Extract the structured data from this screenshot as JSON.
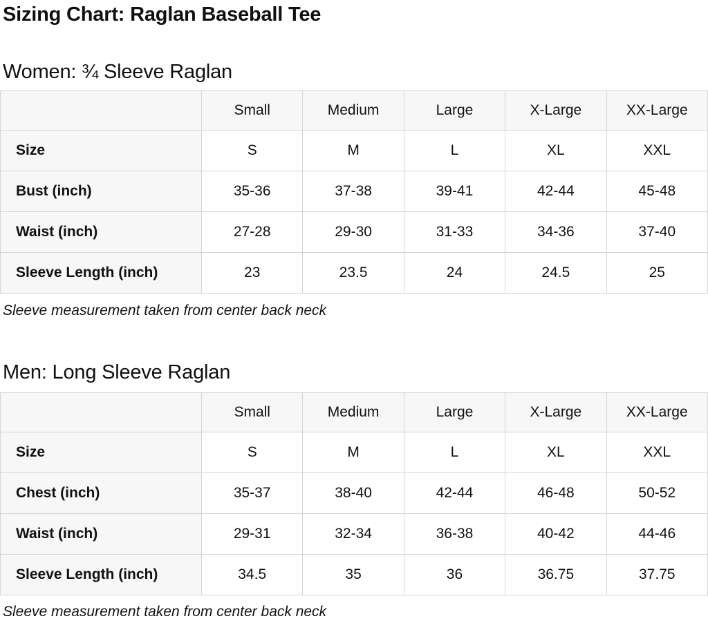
{
  "page_title": "Sizing Chart: Raglan Baseball Tee",
  "sections": [
    {
      "id": "women",
      "heading": "Women: ¾ Sleeve Raglan",
      "columns": [
        "",
        "Small",
        "Medium",
        "Large",
        "X-Large",
        "XX-Large"
      ],
      "rows": [
        {
          "label": "Size",
          "values": [
            "S",
            "M",
            "L",
            "XL",
            "XXL"
          ]
        },
        {
          "label": "Bust (inch)",
          "values": [
            "35-36",
            "37-38",
            "39-41",
            "42-44",
            "45-48"
          ]
        },
        {
          "label": "Waist (inch)",
          "values": [
            "27-28",
            "29-30",
            "31-33",
            "34-36",
            "37-40"
          ]
        },
        {
          "label": "Sleeve Length (inch)",
          "values": [
            "23",
            "23.5",
            "24",
            "24.5",
            "25"
          ]
        }
      ],
      "note": "Sleeve measurement taken from center back neck"
    },
    {
      "id": "men",
      "heading": "Men: Long Sleeve Raglan",
      "columns": [
        "",
        "Small",
        "Medium",
        "Large",
        "X-Large",
        "XX-Large"
      ],
      "rows": [
        {
          "label": "Size",
          "values": [
            "S",
            "M",
            "L",
            "XL",
            "XXL"
          ]
        },
        {
          "label": "Chest (inch)",
          "values": [
            "35-37",
            "38-40",
            "42-44",
            "46-48",
            "50-52"
          ]
        },
        {
          "label": "Waist (inch)",
          "values": [
            "29-31",
            "32-34",
            "36-38",
            "40-42",
            "44-46"
          ]
        },
        {
          "label": "Sleeve Length (inch)",
          "values": [
            "34.5",
            "35",
            "36",
            "36.75",
            "37.75"
          ]
        }
      ],
      "note": "Sleeve measurement taken from center back neck"
    }
  ],
  "colors": {
    "text": "#0f1111",
    "header_cell_bg": "#f7f7f7",
    "table_border": "#d5d5d5",
    "page_bg": "#ffffff"
  }
}
